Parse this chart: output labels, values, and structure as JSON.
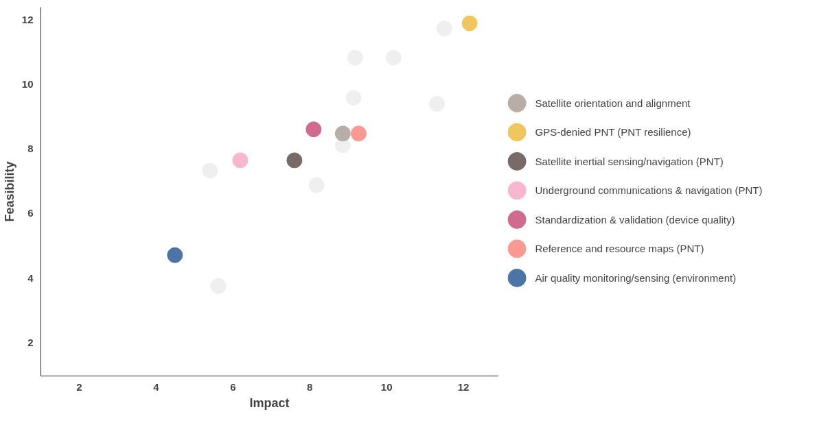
{
  "chart_data": {
    "type": "scatter",
    "xlabel": "Impact",
    "ylabel": "Feasibility",
    "xlim": [
      1,
      12.9
    ],
    "ylim": [
      0.96,
      12.4
    ],
    "xticks": [
      2,
      4,
      6,
      8,
      10,
      12
    ],
    "yticks": [
      2,
      4,
      6,
      8,
      10,
      12
    ],
    "grid": false,
    "legend": "right",
    "marker": "circle",
    "series": [
      {
        "color": "#efefef",
        "x": [
          11.5,
          9.18,
          10.18,
          9.14,
          11.31,
          8.86,
          5.4,
          8.18,
          5.62
        ],
        "values": [
          11.74,
          10.83,
          10.83,
          9.59,
          9.4,
          8.12,
          7.33,
          6.88,
          3.75
        ]
      },
      {
        "name": "Satellite orientation and alignment",
        "color": "#b7aea8",
        "x": [
          8.86
        ],
        "values": [
          8.48
        ]
      },
      {
        "name": "GPS-denied PNT (PNT resilience)",
        "color": "#f0c75e",
        "x": [
          12.16
        ],
        "values": [
          11.9
        ]
      },
      {
        "name": "Satellite inertial sensing/navigation (PNT)",
        "color": "#776a67",
        "x": [
          7.6
        ],
        "values": [
          7.65
        ]
      },
      {
        "name": "Underground communications & navigation (PNT)",
        "color": "#f7b8cf",
        "x": [
          6.19
        ],
        "values": [
          7.65
        ]
      },
      {
        "name": "Standardization & validation (device quality)",
        "color": "#d06a8e",
        "x": [
          8.1
        ],
        "values": [
          8.61
        ]
      },
      {
        "name": "Reference and resource maps (PNT)",
        "color": "#fb9a93",
        "x": [
          9.27
        ],
        "values": [
          8.48
        ]
      },
      {
        "name": "Air quality monitoring/sensing (environment)",
        "color": "#4a75a5",
        "x": [
          4.49
        ],
        "values": [
          4.71
        ]
      }
    ]
  }
}
